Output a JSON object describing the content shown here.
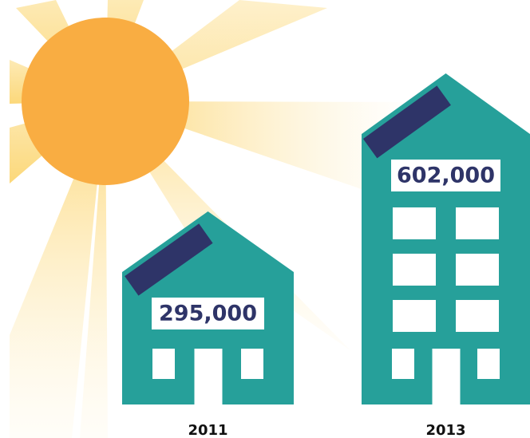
{
  "chart_data": {
    "type": "pictograph",
    "categories": [
      "2011",
      "2013"
    ],
    "values": [
      295000,
      602000
    ],
    "value_labels": [
      "295,000",
      "602,000"
    ],
    "color": "#26a09a"
  }
}
